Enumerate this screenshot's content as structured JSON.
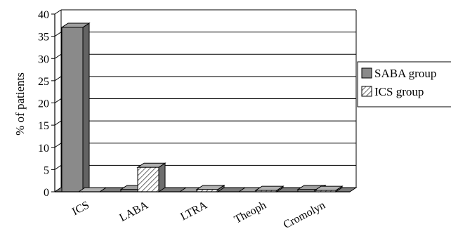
{
  "chart_data": {
    "type": "bar",
    "categories": [
      "ICS",
      "LABA",
      "LTRA",
      "Theoph",
      "Cromolyn"
    ],
    "series": [
      {
        "name": "SABA group",
        "values": [
          37,
          0.5,
          0,
          0,
          0.5
        ],
        "pattern": "solid",
        "color": "#8a8a8a"
      },
      {
        "name": "ICS group",
        "values": [
          0,
          5.5,
          0.5,
          0.3,
          0.3
        ],
        "pattern": "hatched",
        "color": "#d0d0d0"
      }
    ],
    "title": "",
    "xlabel": "",
    "ylabel": "% of patients",
    "ylim": [
      0,
      40
    ],
    "yticks": [
      0,
      5,
      10,
      15,
      20,
      25,
      30,
      35,
      40
    ],
    "grid": true,
    "legend": "right",
    "style": "3d"
  }
}
